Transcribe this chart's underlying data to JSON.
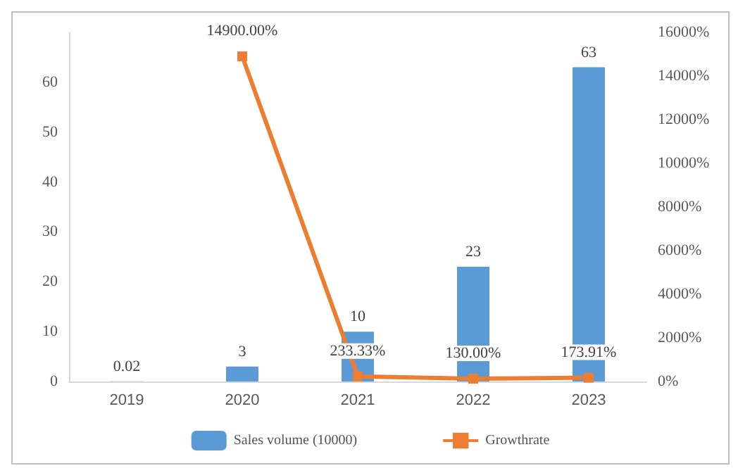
{
  "chart_data": {
    "type": "bar",
    "categories": [
      "2019",
      "2020",
      "2021",
      "2022",
      "2023"
    ],
    "series": [
      {
        "name": "Sales volume (10000)",
        "color": "#5b9bd5",
        "values": [
          0.02,
          3,
          10,
          23,
          63
        ],
        "value_labels": [
          "0.02",
          "3",
          "10",
          "23",
          "63"
        ]
      },
      {
        "name": "Growthrate",
        "type": "line",
        "axis": "y2",
        "color": "#ed7d31",
        "marker": "square",
        "values": [
          null,
          14900,
          233.33,
          130,
          173.91
        ],
        "value_labels": [
          null,
          "14900.00%",
          "233.33%",
          "130.00%",
          "173.91%"
        ]
      }
    ],
    "ylim": [
      0,
      70
    ],
    "yticks": [
      0,
      10,
      20,
      30,
      40,
      50,
      60
    ],
    "y2lim": [
      0,
      16000
    ],
    "y2ticks": [
      {
        "value": 0,
        "label": "0%"
      },
      {
        "value": 2000,
        "label": "2000%"
      },
      {
        "value": 4000,
        "label": "4000%"
      },
      {
        "value": 6000,
        "label": "6000%"
      },
      {
        "value": 8000,
        "label": "8000%"
      },
      {
        "value": 10000,
        "label": "10000%"
      },
      {
        "value": 12000,
        "label": "12000%"
      },
      {
        "value": 14000,
        "label": "14000%"
      },
      {
        "value": 16000,
        "label": "16000%"
      }
    ],
    "legend": "bottom",
    "grid": false
  }
}
